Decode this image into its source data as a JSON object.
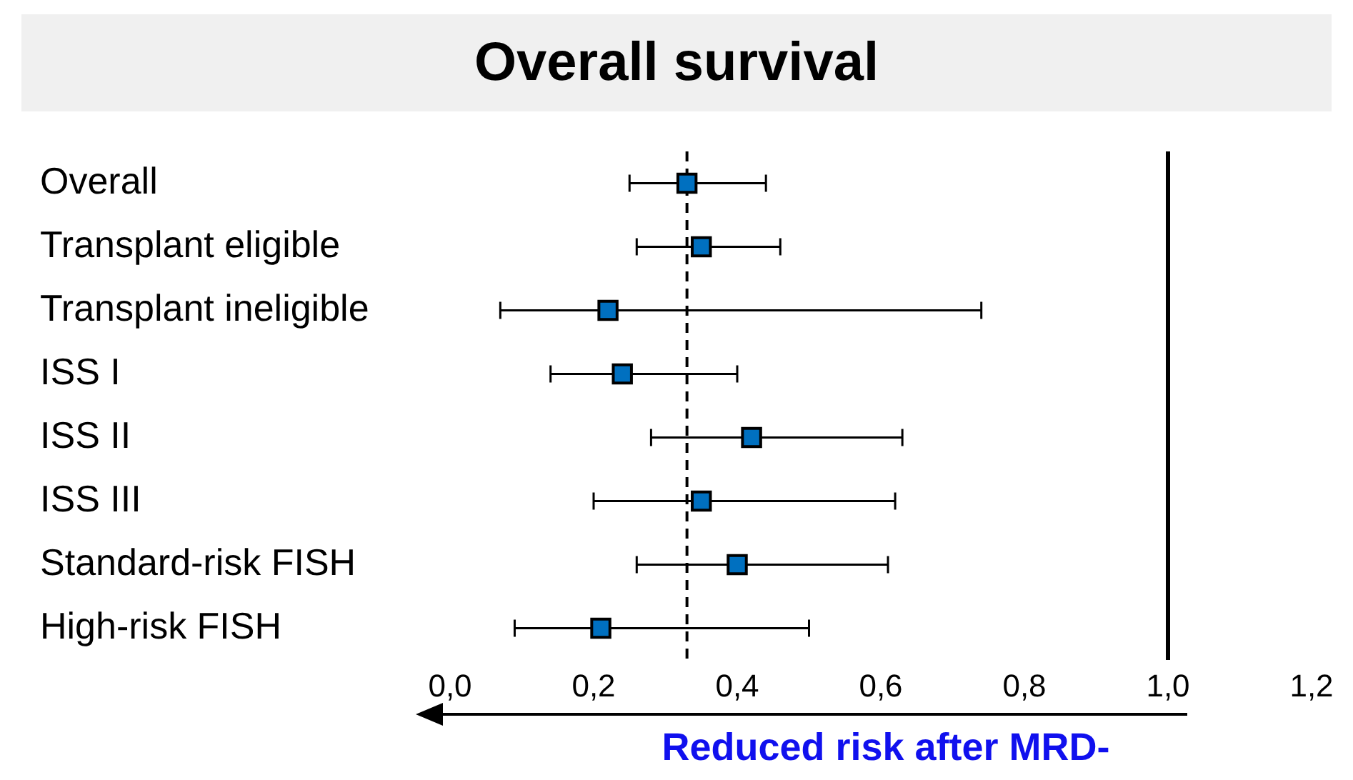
{
  "chart_data": {
    "type": "scatter",
    "orientation": "horizontal",
    "title": "Overall survival",
    "categories": [
      "Overall",
      "Transplant eligible",
      "Transplant ineligible",
      "ISS I",
      "ISS II",
      "ISS III",
      "Standard-risk FISH",
      "High-risk FISH"
    ],
    "values": [
      0.33,
      0.35,
      0.22,
      0.24,
      0.42,
      0.35,
      0.4,
      0.21
    ],
    "errors": [
      [
        0.25,
        0.44
      ],
      [
        0.26,
        0.46
      ],
      [
        0.07,
        0.74
      ],
      [
        0.14,
        0.4
      ],
      [
        0.28,
        0.63
      ],
      [
        0.2,
        0.62
      ],
      [
        0.26,
        0.61
      ],
      [
        0.09,
        0.5
      ]
    ],
    "color": "#0070c0",
    "marker": "square",
    "xlim": [
      0,
      1.2
    ],
    "xticks": [
      {
        "value": 0,
        "label": "0,0"
      },
      {
        "value": 0.2,
        "label": "0,2"
      },
      {
        "value": 0.4,
        "label": "0,4"
      },
      {
        "value": 0.6,
        "label": "0,6"
      },
      {
        "value": 0.8,
        "label": "0,8"
      },
      {
        "value": 1.0,
        "label": "1,0"
      },
      {
        "value": 1.2,
        "label": "1,2"
      }
    ],
    "ref_lines": [
      {
        "axis": "x",
        "value": 0.33,
        "line_style": "dashed"
      },
      {
        "axis": "x",
        "value": 1.0,
        "line_style": "solid"
      }
    ],
    "annotations": [
      "Reduced risk after MRD-"
    ]
  }
}
